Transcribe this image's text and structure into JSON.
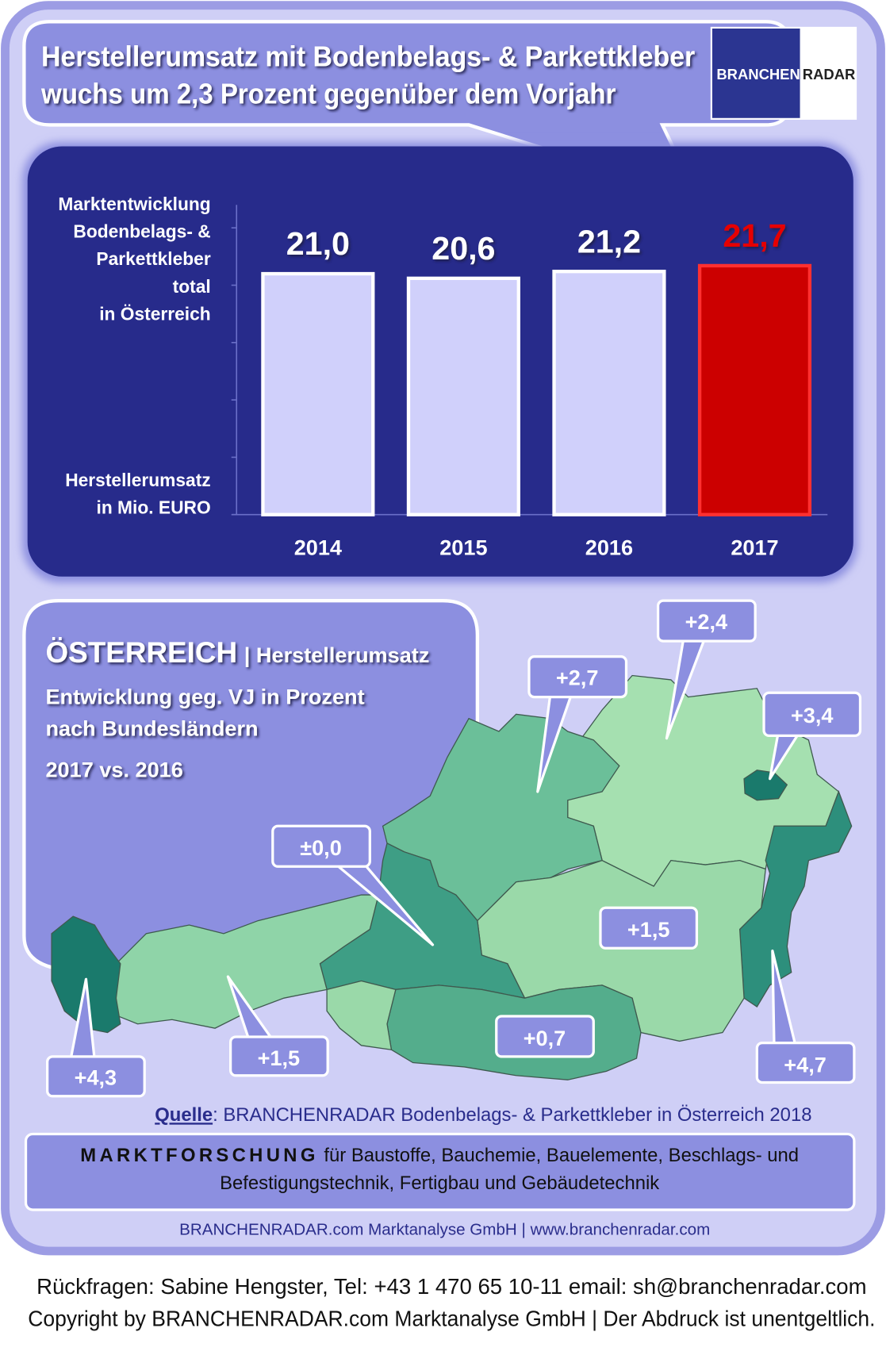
{
  "header": {
    "title_lines": [
      "Herstellerumsatz mit  Bodenbelags- & Parkettkleber",
      "wuchs um 2,3 Prozent gegenüber dem Vorjahr"
    ],
    "logo": [
      "BRANCHEN",
      "RADAR"
    ]
  },
  "chart_data": {
    "type": "bar",
    "y_label_top": [
      "Marktentwicklung",
      "Bodenbelags-  &",
      "Parkettkleber",
      "total",
      "in Österreich"
    ],
    "y_label_bottom": [
      "Herstellerumsatz",
      "in Mio. EURO"
    ],
    "categories": [
      "2014",
      "2015",
      "2016",
      "2017"
    ],
    "values": [
      21.0,
      20.6,
      21.2,
      21.7
    ],
    "value_labels": [
      "21,0",
      "20,6",
      "21,2",
      "21,7"
    ],
    "colors": [
      "#d0d0fb",
      "#d0d0fb",
      "#d0d0fb",
      "#cc0000"
    ],
    "label_colors": [
      "#ffffff",
      "#ffffff",
      "#ffffff",
      "#e60000"
    ],
    "ylim": [
      0,
      27
    ],
    "yticks": [
      0,
      5,
      10,
      15,
      20,
      25
    ]
  },
  "map": {
    "title": "ÖSTERREICH",
    "title_suffix": "| Herstellerumsatz",
    "subtitle_lines": [
      "Entwicklung  geg. VJ in Prozent",
      "nach Bundesländern"
    ],
    "period": "2017 vs. 2016",
    "callouts": [
      "+2,7",
      "+2,4",
      "+3,4",
      "±0,0",
      "+1,5",
      "+0,7",
      "+4,3",
      "+1,5",
      "+4,7"
    ]
  },
  "footer": {
    "source_prefix": "Quelle",
    "source_text": ": BRANCHENRADAR Bodenbelags- & Parkettkleber in Österreich 2018",
    "research_word": "MARKTFORSCHUNG",
    "research_line1": " für Baustoffe, Bauchemie, Bauelemente, Beschlags- und",
    "research_line2": "Befestigungstechnik, Fertigbau und Gebäudetechnik",
    "company": "BRANCHENRADAR.com Marktanalyse GmbH | www.branchenradar.com",
    "contact": "Rückfragen: Sabine Hengster, Tel: +43 1 470 65 10-11 email: sh@branchenradar.com",
    "copyright": "Copyright by BRANCHENRADAR.com  Marktanalyse GmbH | Der Abdruck ist unentgeltlich."
  }
}
